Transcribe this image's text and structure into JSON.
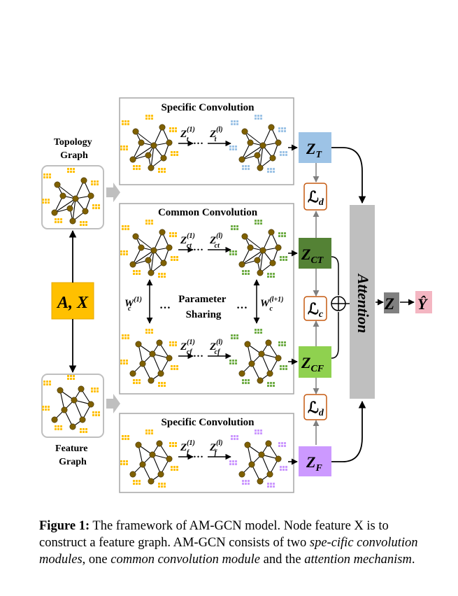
{
  "left_labels": {
    "topology_graph": [
      "Topology",
      "Graph"
    ],
    "feature_graph": [
      "Feature",
      "Graph"
    ],
    "input": "A, X"
  },
  "modules": {
    "specific_top_title": "Specific Convolution",
    "common_title": "Common Convolution",
    "specific_bottom_title": "Specific Convolution",
    "param_sharing": [
      "Parameter",
      "Sharing"
    ],
    "dots": "…"
  },
  "layer_labels": {
    "t": {
      "base": "Z",
      "sub": "t",
      "first": "(1)",
      "last": "(l)"
    },
    "ct": {
      "base": "Z",
      "sub": "ct",
      "first": "(1)",
      "last": "(l)"
    },
    "cf": {
      "base": "Z",
      "sub": "cf",
      "first": "(1)",
      "last": "(l)"
    },
    "f": {
      "base": "Z",
      "sub": "f",
      "first": "(1)",
      "last": "(l)"
    },
    "w_left": {
      "base": "W",
      "sub": "c",
      "sup": "(1)"
    },
    "w_right": {
      "base": "W",
      "sub": "c",
      "sup": "(l+1)"
    }
  },
  "embeddings": {
    "zt": {
      "base": "Z",
      "sub": "T",
      "color": "#9dc3e6"
    },
    "zct": {
      "base": "Z",
      "sub": "CT",
      "color": "#548235"
    },
    "zcf": {
      "base": "Z",
      "sub": "CF",
      "color": "#8fd14f"
    },
    "zf": {
      "base": "Z",
      "sub": "F",
      "color": "#cc99ff"
    }
  },
  "losses": {
    "ld_top": {
      "base": "ℒ",
      "sub": "d"
    },
    "lc": {
      "base": "ℒ",
      "sub": "c"
    },
    "ld_bottom": {
      "base": "ℒ",
      "sub": "d"
    }
  },
  "attention": {
    "label": "Attention",
    "color": "#bfbfbf"
  },
  "output": {
    "z": "Z",
    "y": "Ŷ",
    "z_color": "#808080",
    "y_color": "#f4b6c2"
  },
  "colors": {
    "node": "#7f6000",
    "feature_yellow": "#ffc000",
    "feature_blue": "#9dc3e6",
    "feature_green": "#70ad47",
    "feature_purple": "#cc99ff",
    "input_box": "#ffc000",
    "loss_border": "#c55a11"
  },
  "caption": {
    "label": "Figure 1:",
    "text_1": "The framework of AM-GCN model. Node feature X is to construct a feature graph. AM-GCN consists of two ",
    "italic_1": "spe-cific convolution modules",
    "text_2": ", one ",
    "italic_2": "common convolution module",
    "text_3": " and the ",
    "italic_3": "attention mechanism",
    "text_4": "."
  }
}
